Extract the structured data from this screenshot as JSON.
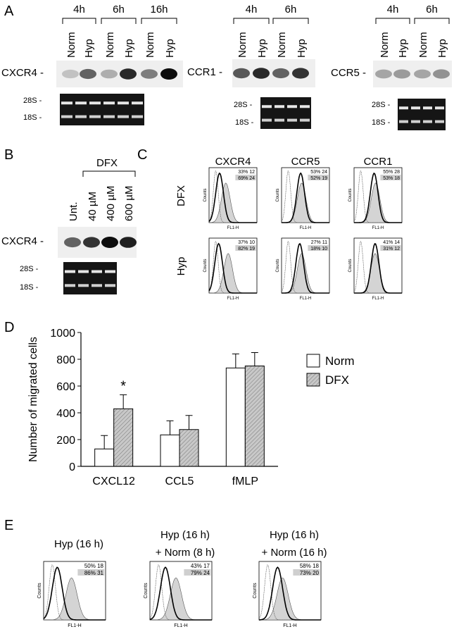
{
  "panel_a": {
    "label": "A",
    "blots": [
      {
        "times": [
          "4h",
          "6h",
          "16h"
        ],
        "lanes": [
          "Norm",
          "Hyp",
          "Norm",
          "Hyp",
          "Norm",
          "Hyp"
        ],
        "target": "CXCR4 -",
        "rrna": [
          "28S -",
          "18S -"
        ]
      },
      {
        "times": [
          "4h",
          "6h"
        ],
        "lanes": [
          "Norm",
          "Hyp",
          "Norm",
          "Hyp"
        ],
        "target": "CCR1 -",
        "rrna": [
          "28S -",
          "18S -"
        ]
      },
      {
        "times": [
          "4h",
          "6h"
        ],
        "lanes": [
          "Norm",
          "Hyp",
          "Norm",
          "Hyp"
        ],
        "target": "CCR5 -",
        "rrna": [
          "28S -",
          "18S -"
        ]
      }
    ]
  },
  "panel_b": {
    "label": "B",
    "treatment": "DFX",
    "lanes": [
      "Unt.",
      "40 µM",
      "400 µM",
      "600 µM"
    ],
    "target": "CXCR4 -",
    "rrna": [
      "28S -",
      "18S -"
    ]
  },
  "panel_c": {
    "label": "C",
    "columns": [
      "CXCR4",
      "CCR5",
      "CCR1"
    ],
    "x_label": "FL1-H",
    "y_label": "Counts",
    "rows": [
      {
        "name": "DFX",
        "stats": [
          [
            "33% 12",
            "69% 24"
          ],
          [
            "53% 24",
            "52% 19"
          ],
          [
            "55% 28",
            "53% 18"
          ]
        ]
      },
      {
        "name": "Hyp",
        "stats": [
          [
            "37% 10",
            "82% 19"
          ],
          [
            "27% 11",
            "18% 10"
          ],
          [
            "41% 14",
            "31% 12"
          ]
        ]
      }
    ]
  },
  "chart_data": {
    "type": "bar",
    "label": "D",
    "y_label": "Number of migrated cells",
    "categories": [
      "CXCL12",
      "CCL5",
      "fMLP"
    ],
    "series": [
      {
        "name": "Norm",
        "color": "#ffffff",
        "values": [
          130,
          235,
          735
        ],
        "errors": [
          100,
          105,
          105
        ]
      },
      {
        "name": "DFX",
        "color": "#c8c8c8",
        "pattern": "hatch",
        "values": [
          430,
          275,
          750
        ],
        "errors": [
          105,
          105,
          100
        ],
        "significance": [
          "*",
          null,
          null
        ]
      }
    ],
    "ylim": [
      0,
      1000
    ],
    "yticks": [
      0,
      200,
      400,
      600,
      800,
      1000
    ],
    "grid": false,
    "legend": "right"
  },
  "panel_e": {
    "label": "E",
    "x_label": "FL1-H",
    "y_label": "Counts",
    "plots": [
      {
        "title": [
          "Hyp (16 h)"
        ],
        "stats": [
          "50% 18",
          "86% 31"
        ]
      },
      {
        "title": [
          "Hyp (16 h)",
          "+ Norm (8 h)"
        ],
        "stats": [
          "43% 17",
          "79% 24"
        ]
      },
      {
        "title": [
          "Hyp (16 h)",
          "+ Norm (16 h)"
        ],
        "stats": [
          "58% 18",
          "73% 20"
        ]
      }
    ]
  }
}
